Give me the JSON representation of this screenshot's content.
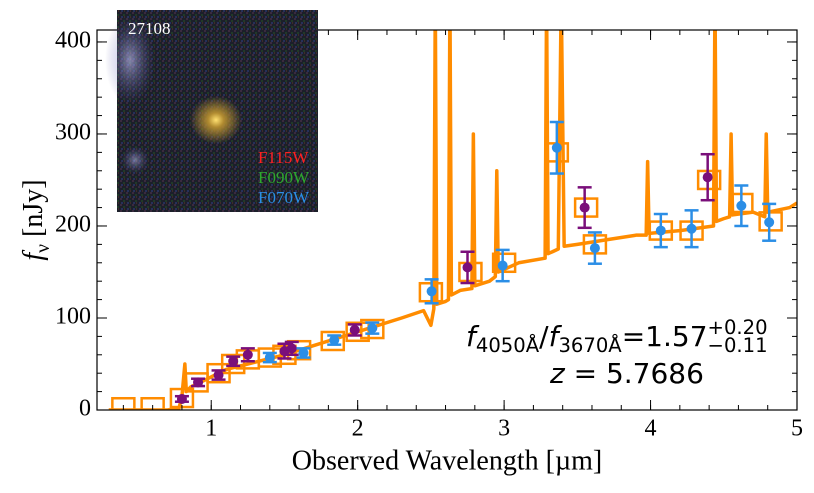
{
  "chart_data": {
    "type": "scatter",
    "x_label": "Observed Wavelength [µm]",
    "y_label": [
      {
        "text": "f",
        "style": "italic"
      },
      {
        "text": "ν",
        "style": "sub"
      },
      {
        "text": " [nJy]",
        "style": "normal"
      }
    ],
    "xlim": [
      0.22,
      5
    ],
    "ylim": [
      0,
      413
    ],
    "xticks": [
      1,
      2,
      3,
      4,
      5
    ],
    "yticks": [
      0,
      100,
      200,
      300,
      400
    ],
    "series": [
      {
        "type": "line",
        "color": "#ff8c00",
        "x": [
          0.3,
          0.7,
          0.78,
          0.8,
          0.82,
          0.83,
          0.86,
          0.95,
          1.1,
          1.3,
          1.5,
          1.7,
          1.9,
          2.1,
          2.3,
          2.45,
          2.5,
          2.52,
          2.53,
          2.54,
          2.6,
          2.62,
          2.63,
          2.64,
          2.7,
          2.78,
          2.79,
          2.8,
          2.9,
          2.94,
          2.95,
          2.96,
          3.1,
          3.28,
          3.29,
          3.3,
          3.33,
          3.37,
          3.39,
          3.41,
          3.5,
          3.7,
          3.9,
          3.97,
          3.98,
          3.99,
          4.2,
          4.43,
          4.44,
          4.45,
          4.5,
          4.54,
          4.55,
          4.56,
          4.7,
          4.78,
          4.79,
          4.8,
          4.95,
          5.0
        ],
        "values": [
          0,
          0,
          2,
          15,
          50,
          20,
          25,
          32,
          44,
          52,
          60,
          70,
          80,
          90,
          100,
          108,
          92,
          110,
          450,
          115,
          118,
          120,
          450,
          125,
          130,
          132,
          300,
          135,
          140,
          145,
          260,
          150,
          160,
          165,
          450,
          170,
          172,
          175,
          450,
          178,
          180,
          185,
          190,
          190,
          270,
          192,
          195,
          200,
          450,
          205,
          208,
          210,
          300,
          212,
          215,
          210,
          300,
          215,
          220,
          225
        ]
      },
      {
        "type": "square",
        "color": "#ff8c00",
        "x": [
          0.4,
          0.6,
          0.8,
          0.9,
          1.05,
          1.15,
          1.25,
          1.4,
          1.5,
          1.6,
          1.83,
          2.0,
          2.1,
          2.5,
          2.77,
          3.0,
          3.36,
          3.56,
          3.62,
          4.07,
          4.28,
          4.4,
          4.62,
          4.82
        ],
        "values": [
          3,
          3,
          13,
          30,
          40,
          50,
          55,
          57,
          60,
          65,
          75,
          85,
          88,
          128,
          150,
          160,
          280,
          220,
          180,
          195,
          195,
          250,
          225,
          205
        ]
      },
      {
        "type": "errorbar",
        "color": "#7a0f7a",
        "x": [
          0.8,
          0.91,
          1.05,
          1.15,
          1.25,
          1.5,
          1.55,
          1.98,
          2.75,
          3.55,
          4.39
        ],
        "values": [
          12,
          30,
          38,
          53,
          60,
          64,
          67,
          87,
          155,
          220,
          253
        ],
        "errors": [
          3,
          4,
          5,
          5,
          7,
          8,
          7,
          6,
          17,
          22,
          25
        ]
      },
      {
        "type": "errorbar",
        "color": "#2b8ee6",
        "x": [
          1.4,
          1.63,
          1.84,
          2.1,
          2.505,
          2.99,
          3.36,
          3.62,
          4.07,
          4.28,
          4.62,
          4.81
        ],
        "values": [
          57,
          62,
          76,
          89,
          129,
          157,
          285,
          176,
          195,
          197,
          222,
          204
        ],
        "errors": [
          5,
          5,
          5,
          6,
          13,
          17,
          28,
          17,
          18,
          20,
          22,
          20
        ]
      }
    ],
    "annotations": [
      [
        {
          "text": "f",
          "style": "italic"
        },
        {
          "text": "4050Å",
          "style": "sub"
        },
        {
          "text": "/",
          "style": "normal"
        },
        {
          "text": "f",
          "style": "italic"
        },
        {
          "text": "3670Å",
          "style": "sub"
        },
        {
          "text": "=1.57",
          "style": "normal"
        },
        {
          "text": "+0.20",
          "style": "sup"
        },
        {
          "text": "−0.11",
          "style": "sub"
        }
      ],
      [
        {
          "text": "z",
          "style": "italic"
        },
        {
          "text": " = 5.7686",
          "style": "normal"
        }
      ]
    ]
  },
  "inset": {
    "id": "27108",
    "filters": [
      {
        "name": "F115W",
        "color": "#ff2020"
      },
      {
        "name": "F090W",
        "color": "#2ea82e"
      },
      {
        "name": "F070W",
        "color": "#2b8ee6"
      }
    ]
  }
}
